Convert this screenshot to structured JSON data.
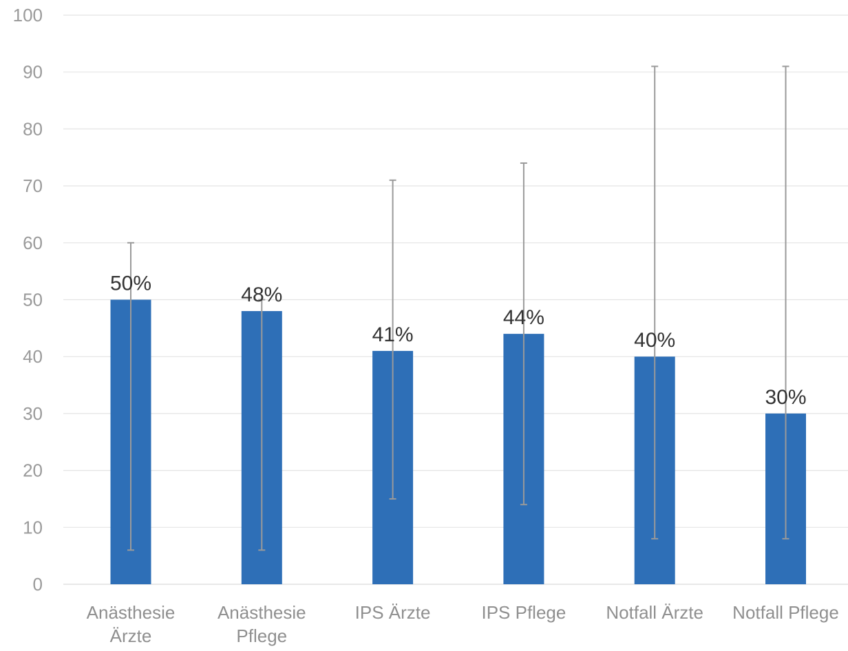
{
  "chart_data": {
    "type": "bar",
    "categories": [
      [
        "Anästhesie",
        "Ärzte"
      ],
      [
        "Anästhesie",
        "Pflege"
      ],
      [
        "IPS Ärzte"
      ],
      [
        "IPS Pflege"
      ],
      [
        "Notfall Ärzte"
      ],
      [
        "Notfall Pflege"
      ]
    ],
    "values": [
      50,
      48,
      41,
      44,
      40,
      30
    ],
    "data_labels": [
      "50%",
      "48%",
      "41%",
      "44%",
      "40%",
      "30%"
    ],
    "error_bars": [
      {
        "low": 6,
        "high": 60
      },
      {
        "low": 6,
        "high": 50
      },
      {
        "low": 15,
        "high": 71
      },
      {
        "low": 14,
        "high": 74
      },
      {
        "low": 8,
        "high": 91
      },
      {
        "low": 8,
        "high": 91
      }
    ],
    "ylim": [
      0,
      100
    ],
    "yticks": [
      "0",
      "10",
      "20",
      "30",
      "40",
      "50",
      "60",
      "70",
      "80",
      "90",
      "100"
    ],
    "grid": true,
    "legend": "none",
    "colors": {
      "bar": "#2e6fb7",
      "error_bar": "#9a9a9a",
      "grid": "#e4e4e4"
    }
  }
}
